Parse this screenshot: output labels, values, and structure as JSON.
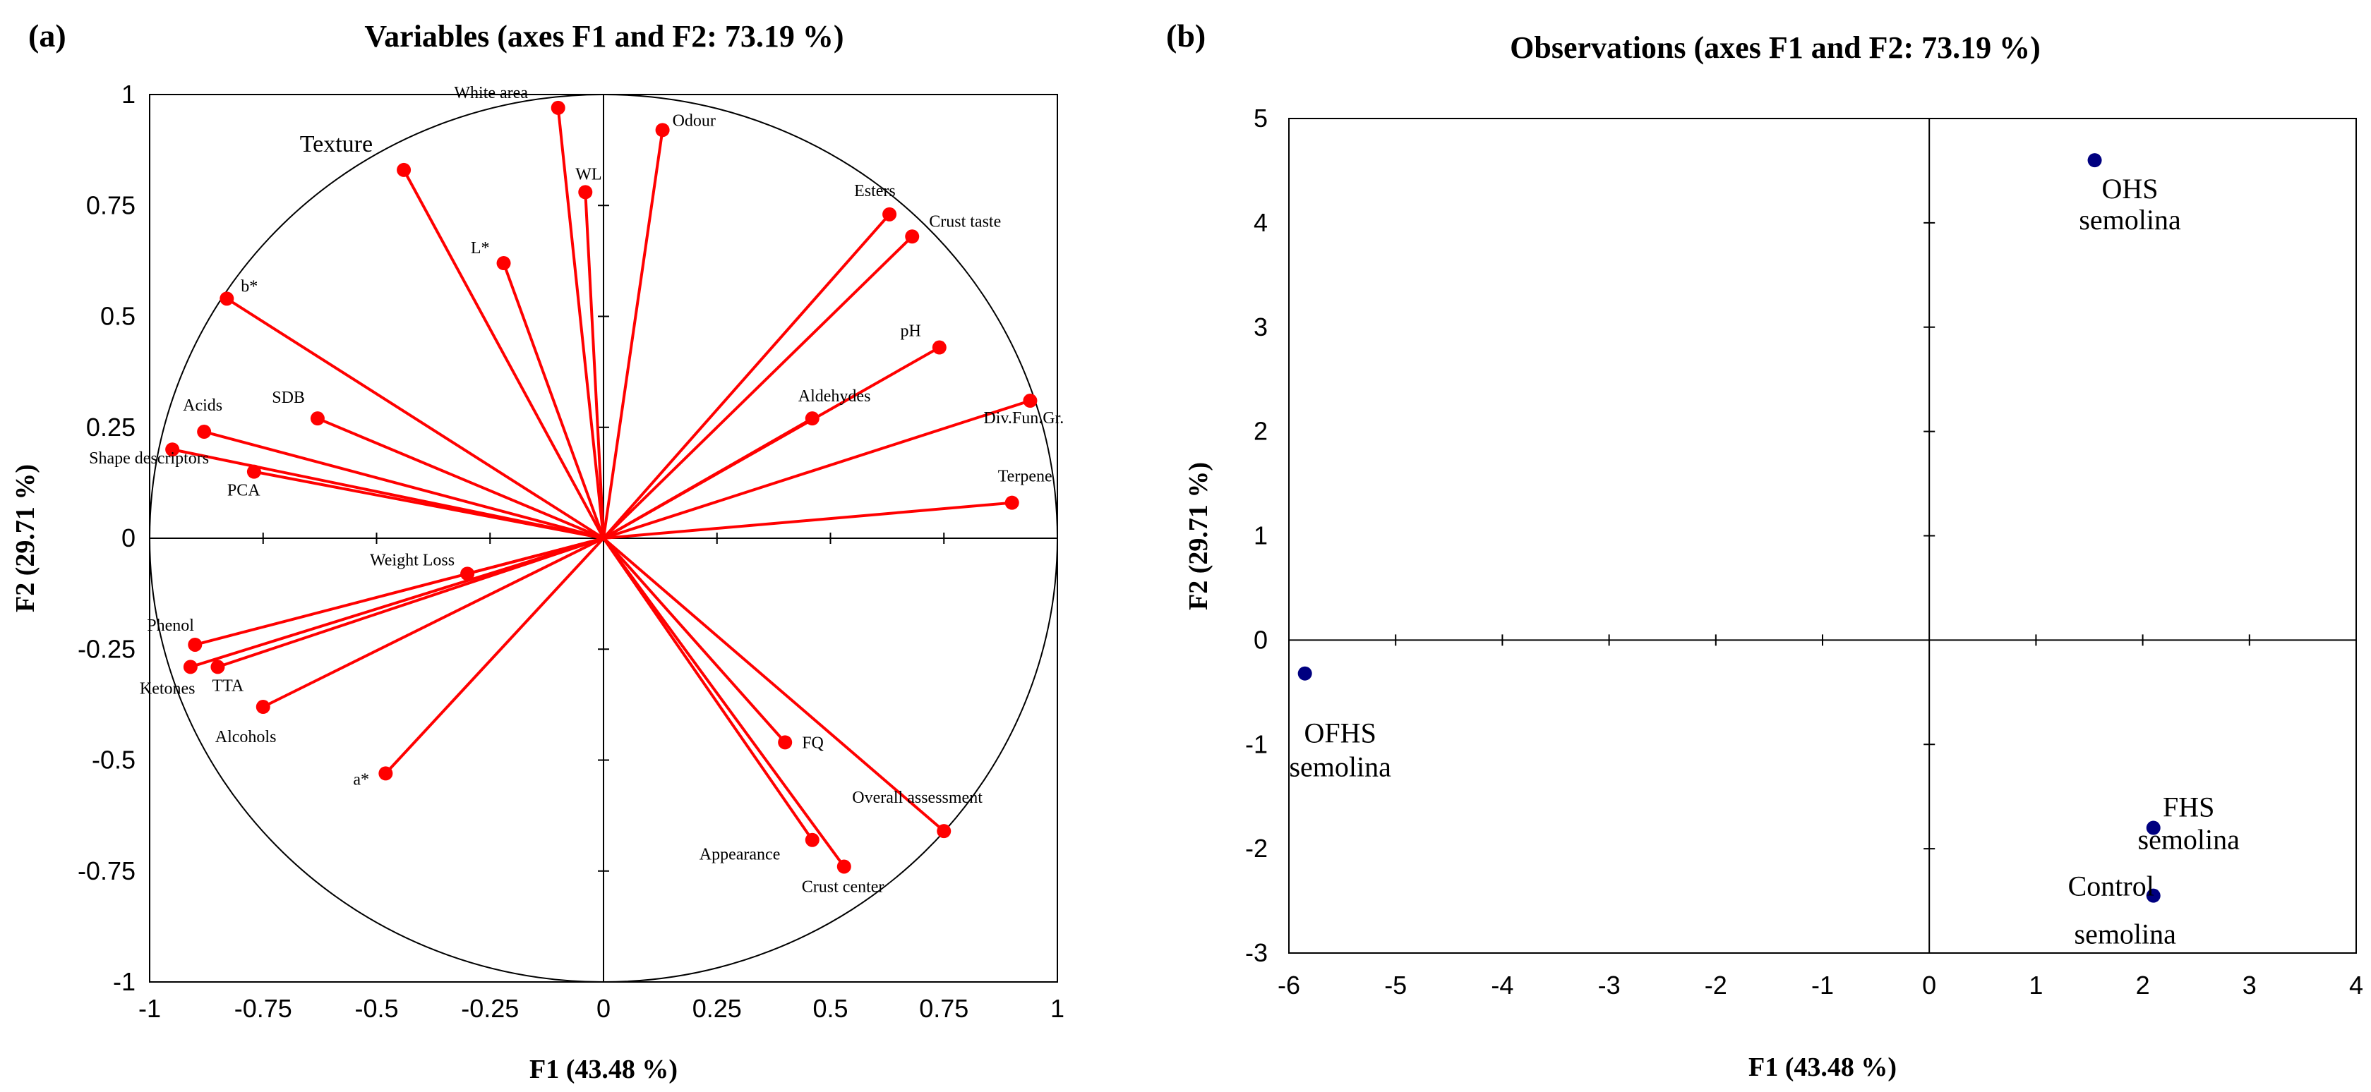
{
  "chart_data": [
    {
      "type": "scatter",
      "subtype": "correlation-circle",
      "panel_label": "(a)",
      "title": "Variables (axes F1 and F2: 73.19 %)",
      "xlabel": "F1 (43.48 %)",
      "ylabel": "F2 (29.71 %)",
      "xlim": [
        -1,
        1
      ],
      "ylim": [
        -1,
        1
      ],
      "x_ticks": [
        "-1",
        "-0.75",
        "-0.5",
        "-0.25",
        "0",
        "0.25",
        "0.5",
        "0.75",
        "1"
      ],
      "y_ticks": [
        "-1",
        "-0.75",
        "-0.5",
        "-0.25",
        "0",
        "0.25",
        "0.5",
        "0.75",
        "1"
      ],
      "unit_circle": true,
      "colors": {
        "vector": "#ff0000",
        "circle": "#000000",
        "axis": "#000000"
      },
      "points": [
        {
          "label": "White area",
          "x": -0.1,
          "y": 0.97
        },
        {
          "label": "Odour",
          "x": 0.13,
          "y": 0.92
        },
        {
          "label": "WL",
          "x": -0.04,
          "y": 0.78
        },
        {
          "label": "Texture",
          "x": -0.44,
          "y": 0.83
        },
        {
          "label": "L*",
          "x": -0.22,
          "y": 0.62
        },
        {
          "label": "b*",
          "x": -0.83,
          "y": 0.54
        },
        {
          "label": "Esters",
          "x": 0.63,
          "y": 0.73
        },
        {
          "label": "Crust taste",
          "x": 0.68,
          "y": 0.68
        },
        {
          "label": "pH",
          "x": 0.74,
          "y": 0.43
        },
        {
          "label": "Aldehydes",
          "x": 0.46,
          "y": 0.27
        },
        {
          "label": "Div.Fun.Gr.",
          "x": 0.94,
          "y": 0.31
        },
        {
          "label": "Terpene",
          "x": 0.9,
          "y": 0.08
        },
        {
          "label": "SDB",
          "x": -0.63,
          "y": 0.27
        },
        {
          "label": "Acids",
          "x": -0.88,
          "y": 0.24
        },
        {
          "label": "Shape descriptors",
          "x": -0.95,
          "y": 0.2
        },
        {
          "label": "PCA",
          "x": -0.77,
          "y": 0.15
        },
        {
          "label": "Weight Loss",
          "x": -0.3,
          "y": -0.08
        },
        {
          "label": "Phenol",
          "x": -0.9,
          "y": -0.24
        },
        {
          "label": "Ketones",
          "x": -0.91,
          "y": -0.29
        },
        {
          "label": "TTA",
          "x": -0.85,
          "y": -0.29
        },
        {
          "label": "Alcohols",
          "x": -0.75,
          "y": -0.38
        },
        {
          "label": "a*",
          "x": -0.48,
          "y": -0.53
        },
        {
          "label": "FQ",
          "x": 0.4,
          "y": -0.46
        },
        {
          "label": "Overall assessment",
          "x": 0.75,
          "y": -0.66
        },
        {
          "label": "Appearance",
          "x": 0.46,
          "y": -0.68
        },
        {
          "label": "Crust center",
          "x": 0.53,
          "y": -0.74
        }
      ]
    },
    {
      "type": "scatter",
      "panel_label": "(b)",
      "title": "Observations (axes F1 and F2: 73.19 %)",
      "xlabel": "F1 (43.48 %)",
      "ylabel": "F2 (29.71 %)",
      "xlim": [
        -6,
        4
      ],
      "ylim": [
        -3,
        5
      ],
      "x_ticks": [
        "-6",
        "-5",
        "-4",
        "-3",
        "-2",
        "-1",
        "0",
        "1",
        "2",
        "3",
        "4"
      ],
      "y_ticks": [
        "-3",
        "-2",
        "-1",
        "0",
        "1",
        "2",
        "3",
        "4",
        "5"
      ],
      "colors": {
        "point": "#000080",
        "axis": "#000000"
      },
      "points": [
        {
          "label_line1": "OHS",
          "label_line2": "semolina",
          "x": 1.55,
          "y": 4.6
        },
        {
          "label_line1": "OFHS",
          "label_line2": "semolina",
          "x": -5.85,
          "y": -0.32
        },
        {
          "label_line1": "FHS",
          "label_line2": "semolina",
          "x": 2.1,
          "y": -1.8
        },
        {
          "label_line1": "Control",
          "label_line2": "semolina",
          "x": 2.1,
          "y": -2.45
        }
      ]
    }
  ]
}
